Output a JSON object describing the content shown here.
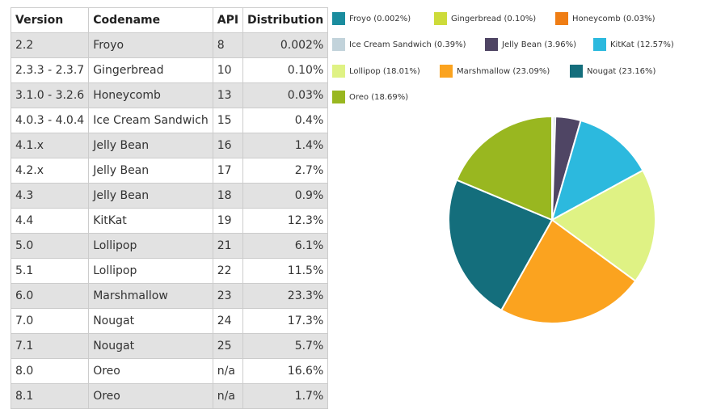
{
  "table": {
    "headers": [
      "Version",
      "Codename",
      "API",
      "Distribution"
    ],
    "rows": [
      [
        "2.2",
        "Froyo",
        "8",
        "0.002%"
      ],
      [
        "2.3.3 - 2.3.7",
        "Gingerbread",
        "10",
        "0.10%"
      ],
      [
        "3.1.0 - 3.2.6",
        "Honeycomb",
        "13",
        "0.03%"
      ],
      [
        "4.0.3 - 4.0.4",
        "Ice Cream Sandwich",
        "15",
        "0.4%"
      ],
      [
        "4.1.x",
        "Jelly Bean",
        "16",
        "1.4%"
      ],
      [
        "4.2.x",
        "Jelly Bean",
        "17",
        "2.7%"
      ],
      [
        "4.3",
        "Jelly Bean",
        "18",
        "0.9%"
      ],
      [
        "4.4",
        "KitKat",
        "19",
        "12.3%"
      ],
      [
        "5.0",
        "Lollipop",
        "21",
        "6.1%"
      ],
      [
        "5.1",
        "Lollipop",
        "22",
        "11.5%"
      ],
      [
        "6.0",
        "Marshmallow",
        "23",
        "23.3%"
      ],
      [
        "7.0",
        "Nougat",
        "24",
        "17.3%"
      ],
      [
        "7.1",
        "Nougat",
        "25",
        "5.7%"
      ],
      [
        "8.0",
        "Oreo",
        "n/a",
        "16.6%"
      ],
      [
        "8.1",
        "Oreo",
        "n/a",
        "1.7%"
      ]
    ]
  },
  "chart_data": {
    "type": "pie",
    "title": "",
    "legend_position": "top",
    "slices": [
      {
        "label": "Froyo",
        "legend": "Froyo (0.002%)",
        "value": 0.002,
        "color": "#1A8C9E"
      },
      {
        "label": "Gingerbread",
        "legend": "Gingerbread (0.10%)",
        "value": 0.1,
        "color": "#CDDB3A"
      },
      {
        "label": "Honeycomb",
        "legend": "Honeycomb (0.03%)",
        "value": 0.03,
        "color": "#EF7D14"
      },
      {
        "label": "Ice Cream Sandwich",
        "legend": "Ice Cream Sandwich (0.39%)",
        "value": 0.39,
        "color": "#C2D3DB"
      },
      {
        "label": "Jelly Bean",
        "legend": "Jelly Bean (3.96%)",
        "value": 3.96,
        "color": "#4F4564"
      },
      {
        "label": "KitKat",
        "legend": "KitKat (12.57%)",
        "value": 12.57,
        "color": "#2CB9DE"
      },
      {
        "label": "Lollipop",
        "legend": "Lollipop (18.01%)",
        "value": 18.01,
        "color": "#DFF284"
      },
      {
        "label": "Marshmallow",
        "legend": "Marshmallow (23.09%)",
        "value": 23.09,
        "color": "#FBA31F"
      },
      {
        "label": "Nougat",
        "legend": "Nougat (23.16%)",
        "value": 23.16,
        "color": "#146E7C"
      },
      {
        "label": "Oreo",
        "legend": "Oreo (18.69%)",
        "value": 18.69,
        "color": "#99B720"
      }
    ]
  }
}
